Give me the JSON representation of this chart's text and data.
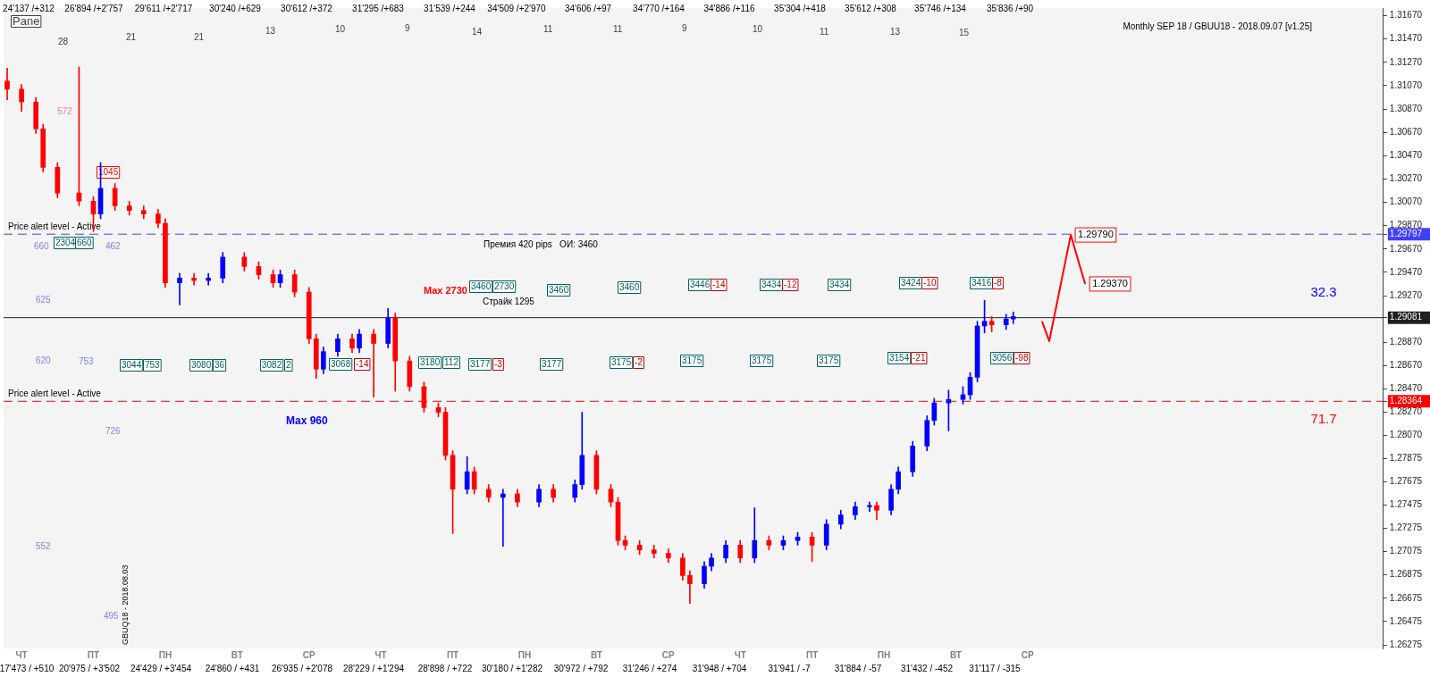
{
  "chart_data": {
    "type": "candlestick",
    "categories": [
      null,
      null,
      "ЧТ",
      null,
      null,
      null,
      null,
      null,
      null,
      null,
      null,
      null,
      "ПТ",
      null,
      null,
      null,
      null,
      null,
      null,
      null,
      null,
      null,
      "ПН",
      null,
      null,
      null,
      null,
      null,
      null,
      null,
      null,
      null,
      "ВТ",
      null,
      null,
      null,
      null,
      null,
      null,
      null,
      null,
      null,
      "СР",
      null,
      null,
      null,
      null,
      null,
      null,
      null,
      null,
      null,
      "ЧТ",
      null,
      null,
      null,
      null,
      null,
      null,
      null,
      null,
      null,
      "ПТ",
      null,
      null,
      null,
      null,
      null,
      null,
      null,
      null,
      null,
      "ПН",
      null,
      null,
      null,
      null,
      null,
      null,
      null,
      null,
      null,
      "ВТ",
      null,
      null,
      null,
      null,
      null,
      null,
      null,
      null,
      null,
      "СР",
      null,
      null,
      null,
      null,
      null,
      null,
      null,
      null,
      null,
      "ЧТ",
      null,
      null,
      null,
      null,
      null,
      null,
      null,
      null,
      null,
      "ПТ",
      null,
      null,
      null,
      null,
      null,
      null,
      null,
      null,
      null,
      "ПН",
      null,
      null,
      null,
      null,
      null,
      null,
      null,
      null,
      null,
      "ВТ",
      null,
      null,
      null,
      null,
      null,
      null,
      null,
      null,
      null,
      "СР",
      null,
      null,
      null,
      null,
      null,
      null,
      null,
      null,
      null,
      null,
      null,
      null,
      null,
      null,
      null,
      null,
      null,
      null,
      null,
      null,
      null,
      null,
      null,
      null,
      null,
      null,
      null,
      null,
      null,
      null,
      null,
      null,
      null,
      null,
      null,
      null,
      null,
      null,
      null,
      null,
      null,
      null,
      null,
      null,
      null,
      null,
      null,
      null,
      null
    ],
    "ylim": [
      1.26245,
      1.31736
    ],
    "yticks": [
      1.26275,
      1.26475,
      1.26675,
      1.26875,
      1.27075,
      1.27275,
      1.27475,
      1.27675,
      1.27875,
      {
        "value": 1.2807,
        "label": "1.28070"
      },
      {
        "value": 1.2827,
        "label": "1.28270"
      },
      1.28364,
      {
        "value": 1.2847,
        "label": "1.28470"
      },
      {
        "value": 1.2867,
        "label": "1.28670"
      },
      {
        "value": 1.2887,
        "label": "1.28870"
      },
      1.29081,
      {
        "value": 1.2927,
        "label": "1.29270"
      },
      {
        "value": 1.2947,
        "label": "1.29470"
      },
      {
        "value": 1.2967,
        "label": "1.29670"
      },
      1.29797,
      {
        "value": 1.2987,
        "label": "1.29870"
      },
      {
        "value": 1.3007,
        "label": "1.30070"
      },
      {
        "value": 1.3027,
        "label": "1.30270"
      },
      {
        "value": 1.3047,
        "label": "1.30470"
      },
      {
        "value": 1.3067,
        "label": "1.30670"
      },
      {
        "value": 1.3087,
        "label": "1.30870"
      },
      {
        "value": 1.3107,
        "label": "1.31070"
      },
      {
        "value": 1.3127,
        "label": "1.31270"
      },
      {
        "value": 1.3147,
        "label": "1.31470"
      },
      {
        "value": 1.3167,
        "label": "1.31670"
      }
    ],
    "ref_lines": [
      {
        "axis": "y",
        "value": 1.29797,
        "label": "Price alert level - Active",
        "color": "#4040ff",
        "line_style": "dashed"
      },
      {
        "axis": "y",
        "value": 1.28364,
        "label": "Price alert level - Active",
        "color": "#ff0000",
        "line_style": "dashed"
      },
      {
        "axis": "y",
        "value": 1.29081,
        "color": "#202020",
        "line_style": "solid"
      }
    ],
    "series": [
      {
        "ohlc": [
          [
            1.3111,
            1.3122,
            1.3095,
            1.3104
          ],
          null,
          [
            1.3104,
            1.3108,
            1.3085,
            1.3093
          ],
          null,
          [
            1.3093,
            1.3097,
            1.3066,
            1.307
          ],
          [
            1.307,
            1.3074,
            1.3033,
            1.3037
          ],
          null,
          [
            1.3037,
            1.3041,
            1.3011,
            1.3015
          ],
          null,
          null,
          [
            1.3015,
            1.3123,
            1.3004,
            1.3008
          ],
          null,
          [
            1.3008,
            1.3012,
            1.2982,
            1.2997
          ],
          [
            1.2997,
            1.3041,
            1.2993,
            1.3019
          ],
          null,
          [
            1.3019,
            1.3023,
            1.3,
            1.3004
          ],
          null,
          [
            1.3004,
            1.3008,
            1.2996,
            1.3
          ],
          null,
          [
            1.3,
            1.3004,
            1.2993,
            1.2997
          ],
          null,
          [
            1.2997,
            1.3001,
            1.2985,
            1.2989
          ],
          [
            1.2989,
            1.2993,
            1.2934,
            1.2938
          ],
          null,
          [
            1.2938,
            1.2946,
            1.2919,
            1.2942
          ],
          null,
          [
            1.2942,
            1.2946,
            1.2936,
            1.294
          ],
          null,
          [
            1.294,
            1.2946,
            1.2936,
            1.2942
          ],
          null,
          [
            1.2942,
            1.2964,
            1.2938,
            1.296
          ],
          null,
          null,
          [
            1.296,
            1.2964,
            1.2948,
            1.2952
          ],
          null,
          [
            1.2952,
            1.2956,
            1.2941,
            1.2945
          ],
          null,
          [
            1.2945,
            1.2949,
            1.2934,
            1.2938
          ],
          [
            1.2938,
            1.2949,
            1.2934,
            1.2945
          ],
          null,
          [
            1.2945,
            1.2949,
            1.2926,
            1.293
          ],
          null,
          [
            1.293,
            1.2934,
            1.2886,
            1.289
          ],
          [
            1.289,
            1.2894,
            1.2856,
            1.2864
          ],
          [
            1.2864,
            1.2883,
            1.286,
            1.2879
          ],
          null,
          [
            1.2879,
            1.2894,
            1.2875,
            1.289
          ],
          null,
          [
            1.289,
            1.2894,
            1.2878,
            1.2882
          ],
          [
            1.2882,
            1.2898,
            1.2878,
            1.2894
          ],
          null,
          [
            1.2894,
            1.2898,
            1.284,
            1.2886
          ],
          null,
          [
            1.2886,
            1.2916,
            1.2882,
            1.2908
          ],
          [
            1.2908,
            1.2912,
            1.2845,
            1.2871
          ],
          null,
          [
            1.2871,
            1.2875,
            1.2845,
            1.2849
          ],
          null,
          [
            1.2849,
            1.2853,
            1.2827,
            1.2831
          ],
          null,
          [
            1.2831,
            1.2835,
            1.2823,
            1.2827
          ],
          [
            1.2827,
            1.2831,
            1.2786,
            1.279
          ],
          [
            1.279,
            1.2794,
            1.2723,
            1.2761
          ],
          null,
          [
            1.2761,
            1.2789,
            1.2757,
            1.2776
          ],
          [
            1.2776,
            1.278,
            1.2757,
            1.2761
          ],
          null,
          [
            1.2761,
            1.2765,
            1.275,
            1.2754
          ],
          null,
          [
            1.2754,
            1.2761,
            1.2712,
            1.2757
          ],
          null,
          [
            1.2757,
            1.2761,
            1.2746,
            1.275
          ],
          null,
          null,
          [
            1.275,
            1.2765,
            1.2746,
            1.2761
          ],
          null,
          [
            1.2761,
            1.2765,
            1.275,
            1.2754
          ],
          null,
          null,
          [
            1.2754,
            1.2769,
            1.275,
            1.2765
          ],
          [
            1.2765,
            1.2827,
            1.2761,
            1.279
          ],
          null,
          [
            1.279,
            1.2794,
            1.2757,
            1.2761
          ],
          null,
          [
            1.2761,
            1.2765,
            1.2746,
            1.275
          ],
          [
            1.275,
            1.2754,
            1.2713,
            1.2717
          ],
          [
            1.2717,
            1.2721,
            1.2709,
            1.2713
          ],
          null,
          [
            1.2713,
            1.2717,
            1.2705,
            1.2709
          ],
          null,
          [
            1.2709,
            1.2713,
            1.2702,
            1.2706
          ],
          null,
          [
            1.2706,
            1.271,
            1.2698,
            1.2702
          ],
          null,
          [
            1.2702,
            1.2706,
            1.2683,
            1.2687
          ],
          [
            1.2687,
            1.2691,
            1.2663,
            1.268
          ],
          null,
          [
            1.268,
            1.2699,
            1.2676,
            1.2695
          ],
          [
            1.2695,
            1.2706,
            1.2691,
            1.2702
          ],
          null,
          [
            1.2702,
            1.2717,
            1.2698,
            1.2713
          ],
          null,
          [
            1.2713,
            1.2717,
            1.2698,
            1.2702
          ],
          null,
          [
            1.2702,
            1.2745,
            1.2698,
            1.2717
          ],
          null,
          [
            1.2717,
            1.2721,
            1.2709,
            1.2713
          ],
          null,
          [
            1.2713,
            1.2721,
            1.2709,
            1.2717
          ],
          null,
          [
            1.2717,
            1.2724,
            1.2713,
            1.272
          ],
          null,
          [
            1.272,
            1.2724,
            1.2699,
            1.2713
          ],
          null,
          [
            1.2713,
            1.2735,
            1.2709,
            1.2731
          ],
          null,
          [
            1.2731,
            1.2743,
            1.2727,
            1.2739
          ],
          null,
          [
            1.2739,
            1.275,
            1.2735,
            1.2746
          ],
          null,
          [
            1.2746,
            1.275,
            1.2742,
            1.2747
          ],
          [
            1.2747,
            1.275,
            1.2735,
            1.2743
          ],
          null,
          [
            1.2743,
            1.2765,
            1.2739,
            1.2761
          ],
          [
            1.2761,
            1.278,
            1.2757,
            1.2776
          ],
          null,
          [
            1.2776,
            1.2802,
            1.2772,
            1.2798
          ],
          null,
          [
            1.2798,
            1.2824,
            1.2794,
            1.282
          ],
          [
            1.282,
            1.2839,
            1.2816,
            1.2835
          ],
          null,
          [
            1.2835,
            1.2846,
            1.2811,
            1.2838
          ],
          null,
          [
            1.2838,
            1.2849,
            1.2834,
            1.2842
          ],
          [
            1.2842,
            1.2861,
            1.2838,
            1.2857
          ],
          [
            1.2857,
            1.2905,
            1.2853,
            1.2901
          ],
          [
            1.2901,
            1.2923,
            1.2895,
            1.2905
          ],
          [
            1.2905,
            1.2909,
            1.2896,
            1.2902
          ],
          null,
          [
            1.2902,
            1.2911,
            1.2898,
            1.2907
          ],
          [
            1.2907,
            1.2913,
            1.2903,
            1.2909
          ],
          null,
          null,
          null,
          null,
          null,
          null,
          null,
          null,
          null,
          null,
          null,
          null,
          null,
          null,
          null,
          null,
          null,
          null,
          null,
          null,
          null,
          null,
          null,
          null,
          null,
          null,
          null,
          null,
          null,
          null,
          null,
          null,
          null,
          null,
          null,
          null,
          null,
          null,
          null,
          null,
          null,
          null,
          null,
          null,
          null,
          null,
          null,
          null,
          null,
          null,
          null
        ],
        "colors": [
          "#ff0000",
          null,
          "#ff0000",
          null,
          "#ff0000",
          "#ff0000",
          null,
          "#ff0000",
          null,
          null,
          "#ff0000",
          null,
          "#ff0000",
          "#0000ff",
          null,
          "#ff0000",
          null,
          "#ff0000",
          null,
          "#ff0000",
          null,
          "#ff0000",
          "#ff0000",
          null,
          "#0000ff",
          null,
          "#ff0000",
          null,
          "#0000ff",
          null,
          "#0000ff",
          null,
          null,
          "#ff0000",
          null,
          "#ff0000",
          null,
          "#ff0000",
          "#0000ff",
          null,
          "#ff0000",
          null,
          "#ff0000",
          "#ff0000",
          "#0000ff",
          null,
          "#0000ff",
          null,
          "#ff0000",
          "#0000ff",
          null,
          "#ff0000",
          null,
          "#0000ff",
          "#ff0000",
          null,
          "#ff0000",
          null,
          "#ff0000",
          null,
          "#ff0000",
          "#ff0000",
          "#ff0000",
          null,
          "#0000ff",
          "#ff0000",
          null,
          "#ff0000",
          null,
          "#0000ff",
          null,
          "#ff0000",
          null,
          null,
          "#0000ff",
          null,
          "#ff0000",
          null,
          null,
          "#0000ff",
          "#0000ff",
          null,
          "#ff0000",
          null,
          "#ff0000",
          "#ff0000",
          "#ff0000",
          null,
          "#ff0000",
          null,
          "#ff0000",
          null,
          "#ff0000",
          null,
          "#ff0000",
          "#ff0000",
          null,
          "#0000ff",
          "#0000ff",
          null,
          "#0000ff",
          null,
          "#ff0000",
          null,
          "#0000ff",
          null,
          "#ff0000",
          null,
          "#0000ff",
          null,
          "#0000ff",
          null,
          "#ff0000",
          null,
          "#0000ff",
          null,
          "#0000ff",
          null,
          "#0000ff",
          null,
          "#0000ff",
          "#ff0000",
          null,
          "#0000ff",
          "#0000ff",
          null,
          "#0000ff",
          null,
          "#0000ff",
          "#0000ff",
          null,
          "#0000ff",
          null,
          "#0000ff",
          "#0000ff",
          "#0000ff",
          "#0000ff",
          "#ff0000",
          null,
          "#0000ff",
          "#0000ff",
          null,
          null,
          null,
          null,
          null,
          null,
          null,
          null,
          null,
          null,
          null,
          null,
          null,
          null,
          null,
          null,
          null,
          null,
          null,
          null,
          null,
          null,
          null,
          null,
          null,
          null,
          null,
          null,
          null,
          null,
          null,
          null,
          null,
          null,
          null,
          null,
          null,
          null,
          null,
          null,
          null,
          null,
          null,
          null,
          null,
          null,
          null,
          null,
          null,
          null,
          null
        ]
      },
      {
        "type": "line",
        "color": "#ff0000",
        "values": [
          null,
          null,
          null,
          null,
          null,
          null,
          null,
          null,
          null,
          null,
          null,
          null,
          null,
          null,
          null,
          null,
          null,
          null,
          null,
          null,
          null,
          null,
          null,
          null,
          null,
          null,
          null,
          null,
          null,
          null,
          null,
          null,
          null,
          null,
          null,
          null,
          null,
          null,
          null,
          null,
          null,
          null,
          null,
          null,
          null,
          null,
          null,
          null,
          null,
          null,
          null,
          null,
          null,
          null,
          null,
          null,
          null,
          null,
          null,
          null,
          null,
          null,
          null,
          null,
          null,
          null,
          null,
          null,
          null,
          null,
          null,
          null,
          null,
          null,
          null,
          null,
          null,
          null,
          null,
          null,
          null,
          null,
          null,
          null,
          null,
          null,
          null,
          null,
          null,
          null,
          null,
          null,
          null,
          null,
          null,
          null,
          null,
          null,
          null,
          null,
          null,
          null,
          null,
          null,
          null,
          null,
          null,
          null,
          null,
          null,
          null,
          null,
          null,
          null,
          null,
          null,
          null,
          null,
          null,
          null,
          null,
          null,
          null,
          null,
          null,
          null,
          null,
          null,
          null,
          null,
          null,
          null,
          null,
          null,
          null,
          null,
          null,
          null,
          null,
          null,
          null,
          null,
          null,
          null,
          1.2905,
          1.2888,
          null,
          null,
          1.2979,
          null,
          1.2937,
          null,
          null,
          null,
          null,
          null,
          null,
          null,
          null,
          null,
          null,
          null,
          null,
          null,
          null,
          null,
          null,
          null,
          null,
          null,
          null,
          null,
          null,
          null,
          null,
          null,
          null,
          null,
          null,
          null,
          null,
          null,
          null,
          null,
          null,
          null,
          null,
          null,
          null,
          null,
          null,
          null
        ],
        "value_labels": [
          null,
          null,
          null,
          null,
          null,
          null,
          null,
          null,
          null,
          null,
          null,
          null,
          null,
          null,
          null,
          null,
          null,
          null,
          null,
          null,
          null,
          null,
          null,
          null,
          null,
          null,
          null,
          null,
          null,
          null,
          null,
          null,
          null,
          null,
          null,
          null,
          null,
          null,
          null,
          null,
          null,
          null,
          null,
          null,
          null,
          null,
          null,
          null,
          null,
          null,
          null,
          null,
          null,
          null,
          null,
          null,
          null,
          null,
          null,
          null,
          null,
          null,
          null,
          null,
          null,
          null,
          null,
          null,
          null,
          null,
          null,
          null,
          null,
          null,
          null,
          null,
          null,
          null,
          null,
          null,
          null,
          null,
          null,
          null,
          null,
          null,
          null,
          null,
          null,
          null,
          null,
          null,
          null,
          null,
          null,
          null,
          null,
          null,
          null,
          null,
          null,
          null,
          null,
          null,
          null,
          null,
          null,
          null,
          null,
          null,
          null,
          null,
          null,
          null,
          null,
          null,
          null,
          null,
          null,
          null,
          null,
          null,
          null,
          null,
          null,
          null,
          null,
          null,
          null,
          null,
          null,
          null,
          null,
          null,
          null,
          null,
          null,
          null,
          null,
          null,
          null,
          null,
          null,
          null,
          null,
          null,
          null,
          null,
          "1.29790",
          null,
          "1.29370",
          null,
          null,
          null,
          null,
          null,
          null,
          null,
          null,
          null,
          null,
          null,
          null,
          null,
          null,
          null,
          null,
          null,
          null,
          null,
          null,
          null,
          null,
          null,
          null,
          null,
          null,
          null,
          null,
          null,
          null,
          null,
          null,
          null,
          null,
          null,
          null,
          null,
          null,
          null,
          null,
          null
        ]
      }
    ],
    "annotations": [
      "17'473 / +510",
      "20'975 / +3'502",
      "24'429 / +3'454",
      "24'860 / +431",
      "26'935 / +2'078",
      "28'229 / +1'294",
      "28'898 / +722",
      "30'180 / +1'282",
      "30'972 / +792",
      "31'246 / +274",
      "31'948 / +704",
      "31'941 / -7",
      "31'884 / -57",
      "31'432 / -452",
      "31'117 / -315",
      "24'137 /+312",
      "26'894 /+2'757",
      "29'611 /+2'717",
      "30'240 /+629",
      "30'612 /+372",
      "31'295 /+683",
      "31'539 /+244",
      "34'509 /+2'970",
      "34'606 /+97",
      "34'770 /+164",
      "34'886 /+116",
      "35'304 /+418",
      "35'612 /+308",
      "35'746 /+134",
      "35'836 /+90",
      "28",
      "21",
      "21",
      "13",
      "10",
      "9",
      "14",
      "11",
      "11",
      "9",
      "10",
      "11",
      "13",
      "15",
      "Pane",
      "Monthly SEP 18 / GBUU18 - 2018.09.07 [v1.25]",
      "572",
      "1045",
      "660",
      "2304",
      "660",
      "462",
      "625",
      "620",
      "753",
      "3044",
      "753",
      "3080",
      "36",
      "3082",
      "2",
      "3068",
      "-14",
      "3180",
      "112",
      "3177",
      "-3",
      "3177",
      "3175",
      "-2",
      "3175",
      "3175",
      "3175",
      "3154",
      "-21",
      "3056",
      "-98",
      "726",
      "Max 960",
      "552",
      "495",
      "GBUQ18 - 2018.08.03",
      "Max 2730",
      "3460",
      "2730",
      "Страйк 1295",
      "Премия 420 pips   ОИ: 3460",
      "3460",
      "3460",
      "3446",
      "-14",
      "3434",
      "-12",
      "3434",
      "3424",
      "-10",
      "3416",
      "-8",
      "32.3",
      "71.7"
    ],
    "legend": false
  }
}
